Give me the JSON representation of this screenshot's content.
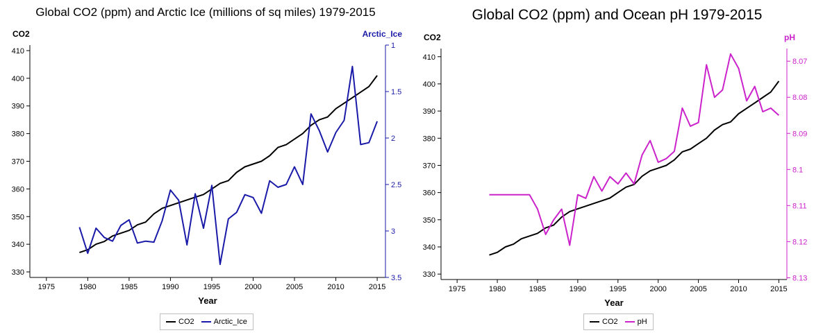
{
  "chart_data": [
    {
      "type": "line",
      "title": "Global CO2 (ppm) and Arctic Ice (millions of sq miles) 1979-2015",
      "xlabel": "Year",
      "ylabel": "CO2",
      "y2label": "Arctic_Ice",
      "xlim": [
        1973,
        2016
      ],
      "xticks": [
        "1975",
        "1980",
        "1985",
        "1990",
        "1995",
        "2000",
        "2005",
        "2010",
        "2015"
      ],
      "ylim": [
        328,
        412
      ],
      "yticks": [
        "330",
        "340",
        "350",
        "360",
        "370",
        "380",
        "390",
        "400",
        "410"
      ],
      "y2lim": [
        1.0,
        3.5
      ],
      "y2_inverted": true,
      "y2ticks": [
        "1",
        "1.5",
        "2",
        "2.5",
        "3",
        "3.5"
      ],
      "x": [
        1979,
        1980,
        1981,
        1982,
        1983,
        1984,
        1985,
        1986,
        1987,
        1988,
        1989,
        1990,
        1991,
        1992,
        1993,
        1994,
        1995,
        1996,
        1997,
        1998,
        1999,
        2000,
        2001,
        2002,
        2003,
        2004,
        2005,
        2006,
        2007,
        2008,
        2009,
        2010,
        2011,
        2012,
        2013,
        2014,
        2015
      ],
      "series": [
        {
          "name": "CO2",
          "axis": "left",
          "color": "#000000",
          "values": [
            337,
            338,
            340,
            341,
            343,
            344,
            345,
            347,
            348,
            351,
            353,
            354,
            355,
            356,
            357,
            358,
            360,
            362,
            363,
            366,
            368,
            369,
            370,
            372,
            375,
            376,
            378,
            380,
            383,
            385,
            386,
            389,
            391,
            393,
            395,
            397,
            401
          ]
        },
        {
          "name": "Arctic_Ice",
          "axis": "right",
          "color": "#1a1aa8",
          "values": [
            2.96,
            3.24,
            2.97,
            3.07,
            3.11,
            2.94,
            2.88,
            3.13,
            3.11,
            3.12,
            2.89,
            2.56,
            2.67,
            3.15,
            2.6,
            2.97,
            2.51,
            3.36,
            2.87,
            2.8,
            2.61,
            2.64,
            2.81,
            2.46,
            2.53,
            2.5,
            2.31,
            2.5,
            1.74,
            1.92,
            2.15,
            1.94,
            1.81,
            1.23,
            2.07,
            2.05,
            1.82
          ]
        }
      ],
      "legend": "bottom"
    },
    {
      "type": "line",
      "title": "Global CO2 (ppm) and Ocean pH 1979-2015",
      "xlabel": "Year",
      "ylabel": "CO2",
      "y2label": "pH",
      "xlim": [
        1973,
        2016
      ],
      "xticks": [
        "1975",
        "1980",
        "1985",
        "1990",
        "1995",
        "2000",
        "2005",
        "2010",
        "2015"
      ],
      "ylim": [
        328,
        413
      ],
      "yticks": [
        "330",
        "340",
        "350",
        "360",
        "370",
        "380",
        "390",
        "400",
        "410"
      ],
      "y2lim": [
        8.0665,
        8.1305
      ],
      "y2_inverted": true,
      "y2ticks": [
        "8.07",
        "8.08",
        "8.09",
        "8.1",
        "8.11",
        "8.12",
        "8.13"
      ],
      "x": [
        1979,
        1980,
        1981,
        1982,
        1983,
        1984,
        1985,
        1986,
        1987,
        1988,
        1989,
        1990,
        1991,
        1992,
        1993,
        1994,
        1995,
        1996,
        1997,
        1998,
        1999,
        2000,
        2001,
        2002,
        2003,
        2004,
        2005,
        2006,
        2007,
        2008,
        2009,
        2010,
        2011,
        2012,
        2013,
        2014,
        2015
      ],
      "series": [
        {
          "name": "CO2",
          "axis": "left",
          "color": "#000000",
          "values": [
            337,
            338,
            340,
            341,
            343,
            344,
            345,
            347,
            348,
            351,
            353,
            354,
            355,
            356,
            357,
            358,
            360,
            362,
            363,
            366,
            368,
            369,
            370,
            372,
            375,
            376,
            378,
            380,
            383,
            385,
            386,
            389,
            391,
            393,
            395,
            397,
            401
          ]
        },
        {
          "name": "pH",
          "axis": "right",
          "color": "#cc22cc",
          "values": [
            8.107,
            8.107,
            8.107,
            8.107,
            8.107,
            8.107,
            8.111,
            8.118,
            8.114,
            8.111,
            8.121,
            8.107,
            8.108,
            8.102,
            8.106,
            8.102,
            8.104,
            8.101,
            8.104,
            8.096,
            8.092,
            8.098,
            8.097,
            8.095,
            8.083,
            8.088,
            8.087,
            8.071,
            8.08,
            8.078,
            8.068,
            8.072,
            8.081,
            8.077,
            8.084,
            8.083,
            8.085
          ]
        }
      ],
      "legend": "bottom"
    }
  ]
}
